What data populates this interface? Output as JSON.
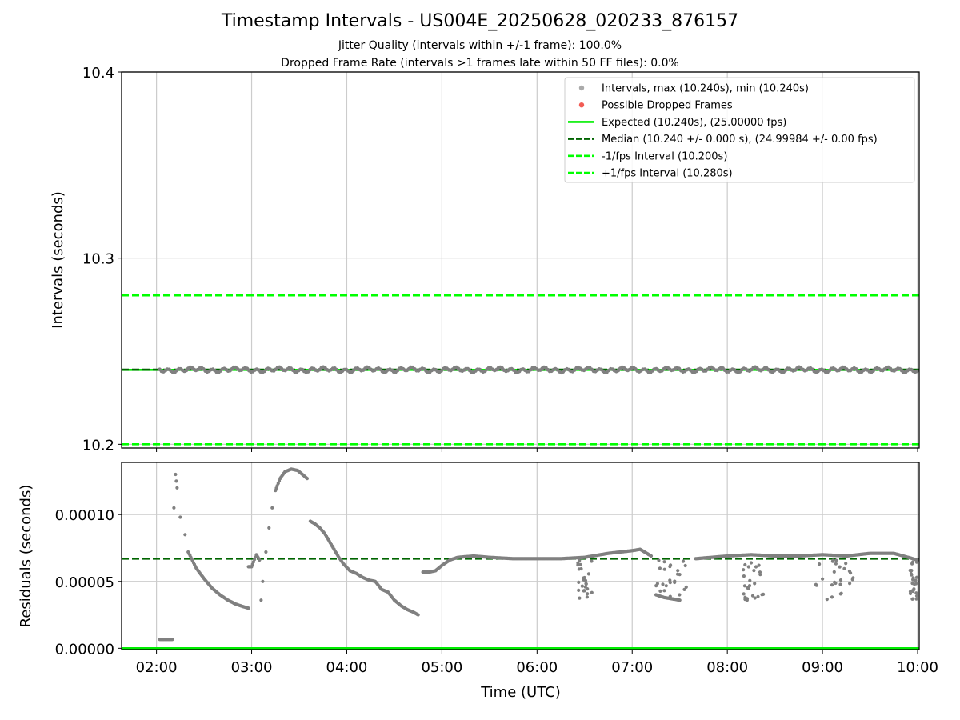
{
  "title": "Timestamp Intervals - US004E_20250628_020233_876157",
  "subtitle_1": "Jitter Quality (intervals within +/-1 frame): 100.0%",
  "subtitle_2": "Dropped Frame Rate (intervals >1 frames late within 50 FF files): 0.0%",
  "colors": {
    "points": "#808080",
    "dropped": "#f25c54",
    "expected": "#00ee00",
    "median": "#006400",
    "interval_bounds": "#00ff00",
    "grid": "#cccccc"
  },
  "chart_data": [
    {
      "type": "scatter",
      "ylabel": "Intervals (seconds)",
      "xlabel": "",
      "ylim": [
        10.198,
        10.4
      ],
      "yticks": [
        "10.2",
        "10.3",
        "10.4"
      ],
      "xticks": [
        "02:00",
        "03:00",
        "04:00",
        "05:00",
        "06:00",
        "07:00",
        "08:00",
        "09:00",
        "10:00"
      ],
      "grid": true,
      "legend_position": "top-right",
      "legend": [
        {
          "label": "Intervals, max (10.240s), min (10.240s)",
          "marker": "dot",
          "color": "#aaaaaa"
        },
        {
          "label": "Possible Dropped Frames",
          "marker": "dot",
          "color": "#f25c54"
        },
        {
          "label": "Expected (10.240s), (25.00000 fps)",
          "marker": "solid",
          "color": "#00ee00"
        },
        {
          "label": "Median (10.240 +/- 0.000 s), (24.99984 +/- 0.00 fps)",
          "marker": "dashed",
          "color": "#006400"
        },
        {
          "label": "-1/fps Interval (10.200s)",
          "marker": "dashed",
          "color": "#00ff00"
        },
        {
          "label": "+1/fps Interval (10.280s)",
          "marker": "dashed",
          "color": "#00ff00"
        }
      ],
      "reference_lines": [
        {
          "name": "Expected",
          "y": 10.24,
          "style": "solid",
          "color": "#00ee00"
        },
        {
          "name": "Median",
          "y": 10.2401,
          "style": "dashed",
          "color": "#006400"
        },
        {
          "name": "-1/fps Interval",
          "y": 10.2,
          "style": "dashed",
          "color": "#00ff00"
        },
        {
          "name": "+1/fps Interval",
          "y": 10.28,
          "style": "dashed",
          "color": "#00ff00"
        }
      ],
      "series": [
        {
          "values_note": "",
          "x_start": "02:02",
          "x_end": "10:00",
          "y": 10.24
        }
      ]
    },
    {
      "type": "scatter",
      "ylabel": "Residuals (seconds)",
      "xlabel": "Time (UTC)",
      "ylim": [
        -1e-06,
        0.000139
      ],
      "yticks": [
        "0.00000",
        "0.00005",
        "0.00010"
      ],
      "xticks": [
        "02:00",
        "03:00",
        "04:00",
        "05:00",
        "06:00",
        "07:00",
        "08:00",
        "09:00",
        "10:00"
      ],
      "grid": true,
      "reference_lines": [
        {
          "name": "Median",
          "y": 6.7e-05,
          "style": "dashed",
          "color": "#006400"
        },
        {
          "name": "Expected",
          "y": 0.0,
          "style": "solid",
          "color": "#00ee00"
        }
      ],
      "series": [
        {
          "points": [
            [
              "02:02",
              6.6e-06
            ],
            [
              "02:06",
              6.6e-06
            ],
            [
              "02:10",
              6.6e-06
            ],
            [
              "02:11",
              0.000105
            ],
            [
              "02:12",
              0.00013
            ],
            [
              "02:13",
              0.00012
            ],
            [
              "02:15",
              9.8e-05
            ],
            [
              "02:18",
              8.5e-05
            ],
            [
              "02:20",
              7.2e-05
            ],
            [
              "02:25",
              6e-05
            ],
            [
              "02:30",
              5.2e-05
            ],
            [
              "02:35",
              4.5e-05
            ],
            [
              "02:40",
              4e-05
            ],
            [
              "02:45",
              3.6e-05
            ],
            [
              "02:50",
              3.3e-05
            ],
            [
              "02:55",
              3.1e-05
            ],
            [
              "02:58",
              3e-05
            ],
            [
              "02:58",
              6.1e-05
            ],
            [
              "03:00",
              6.1e-05
            ],
            [
              "03:03",
              7e-05
            ],
            [
              "03:05",
              6.6e-05
            ],
            [
              "03:06",
              3.6e-05
            ],
            [
              "03:07",
              5e-05
            ],
            [
              "03:09",
              7.2e-05
            ],
            [
              "03:11",
              9e-05
            ],
            [
              "03:13",
              0.000105
            ],
            [
              "03:15",
              0.000118
            ],
            [
              "03:18",
              0.000127
            ],
            [
              "03:21",
              0.000132
            ],
            [
              "03:25",
              0.000134
            ],
            [
              "03:29",
              0.000133
            ],
            [
              "03:32",
              0.00013
            ],
            [
              "03:35",
              0.000127
            ],
            [
              "03:37",
              9.5e-05
            ],
            [
              "03:40",
              9.3e-05
            ],
            [
              "03:43",
              9e-05
            ],
            [
              "03:46",
              8.6e-05
            ],
            [
              "03:49",
              8e-05
            ],
            [
              "03:52",
              7.4e-05
            ],
            [
              "03:55",
              6.8e-05
            ],
            [
              "03:58",
              6.3e-05
            ],
            [
              "04:02",
              5.8e-05
            ],
            [
              "04:06",
              5.6e-05
            ],
            [
              "04:10",
              5.3e-05
            ],
            [
              "04:14",
              5.1e-05
            ],
            [
              "04:18",
              5e-05
            ],
            [
              "04:22",
              4.4e-05
            ],
            [
              "04:26",
              4.2e-05
            ],
            [
              "04:30",
              3.6e-05
            ],
            [
              "04:34",
              3.2e-05
            ],
            [
              "04:38",
              2.9e-05
            ],
            [
              "04:42",
              2.7e-05
            ],
            [
              "04:45",
              2.5e-05
            ],
            [
              "04:48",
              5.7e-05
            ],
            [
              "04:52",
              5.7e-05
            ],
            [
              "04:56",
              5.8e-05
            ],
            [
              "05:00",
              6.2e-05
            ],
            [
              "05:05",
              6.6e-05
            ],
            [
              "05:10",
              6.8e-05
            ],
            [
              "05:20",
              6.9e-05
            ],
            [
              "05:30",
              6.8e-05
            ],
            [
              "05:45",
              6.7e-05
            ],
            [
              "06:00",
              6.7e-05
            ],
            [
              "06:15",
              6.7e-05
            ],
            [
              "06:30",
              6.8e-05
            ],
            [
              "06:45",
              7.1e-05
            ],
            [
              "07:00",
              7.3e-05
            ],
            [
              "07:05",
              7.4e-05
            ],
            [
              "07:12",
              6.9e-05
            ],
            [
              "07:15",
              4e-05
            ],
            [
              "07:20",
              3.8e-05
            ],
            [
              "07:25",
              3.7e-05
            ],
            [
              "07:30",
              3.6e-05
            ],
            [
              "07:40",
              6.7e-05
            ],
            [
              "07:50",
              6.8e-05
            ],
            [
              "08:00",
              6.9e-05
            ],
            [
              "08:15",
              7e-05
            ],
            [
              "08:30",
              6.9e-05
            ],
            [
              "08:45",
              6.9e-05
            ],
            [
              "09:00",
              7e-05
            ],
            [
              "09:15",
              6.9e-05
            ],
            [
              "09:30",
              7.1e-05
            ],
            [
              "09:45",
              7.1e-05
            ],
            [
              "10:00",
              6.6e-05
            ]
          ]
        }
      ]
    }
  ]
}
